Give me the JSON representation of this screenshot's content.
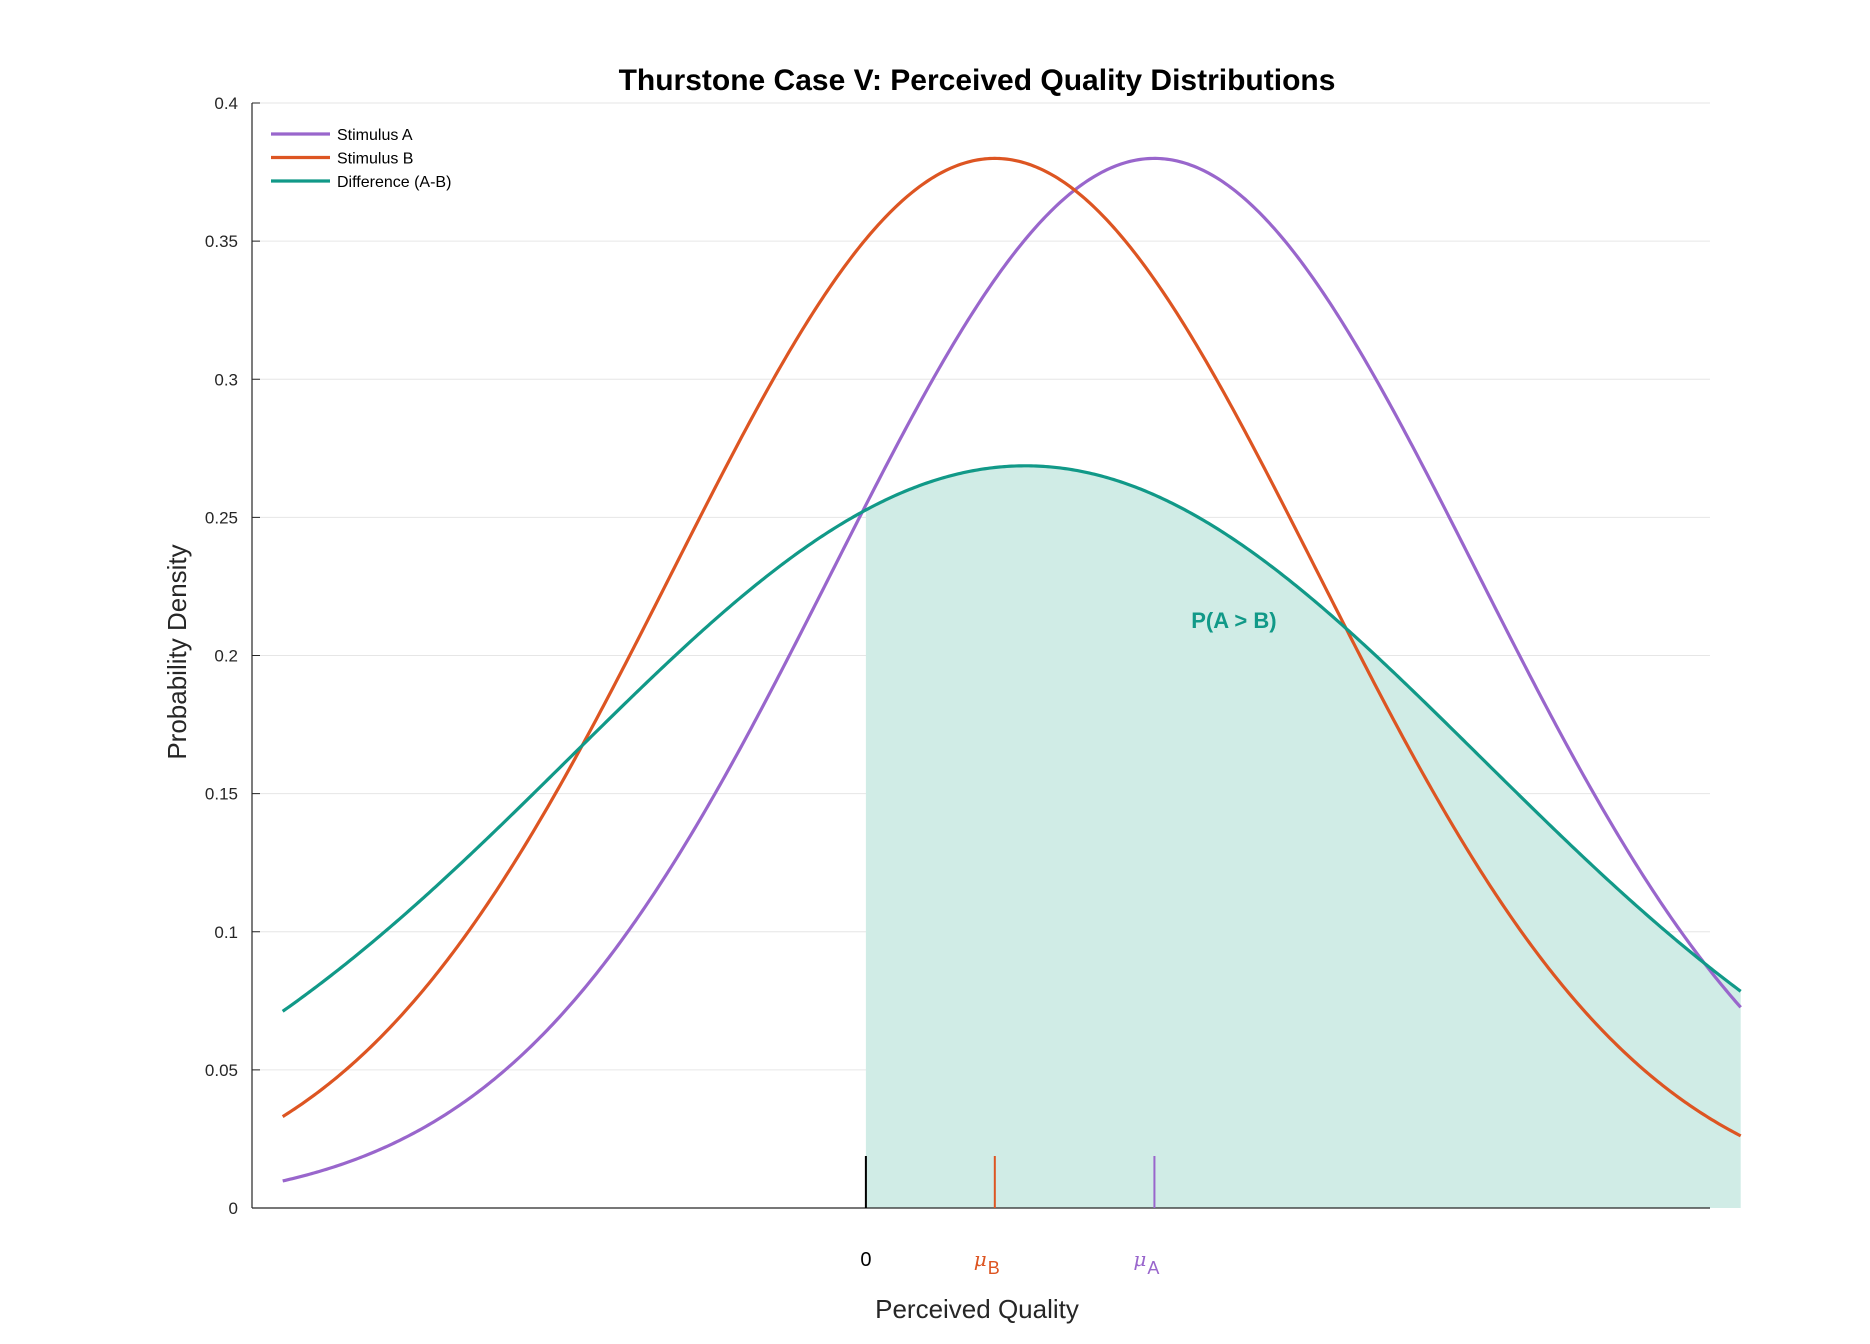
{
  "chart_data": {
    "type": "line",
    "title": "Thurstone Case V: Perceived Quality Distributions",
    "xlabel": "Perceived Quality",
    "ylabel": "Probability Density",
    "xlim": [
      -2.0,
      2.75
    ],
    "ylim": [
      0,
      0.4
    ],
    "yticks": [
      0,
      0.05,
      0.1,
      0.15,
      0.2,
      0.25,
      0.3,
      0.35,
      0.4
    ],
    "ytick_labels": [
      "0",
      "0.05",
      "0.1",
      "0.15",
      "0.2",
      "0.25",
      "0.3",
      "0.35",
      "0.4"
    ],
    "grid": true,
    "legend_position": "top-left",
    "x_range_plotted": [
      -1.9,
      2.85
    ],
    "series": [
      {
        "name": "Stimulus A",
        "color": "#9966cc",
        "mean": 0.94,
        "sd": 1.05
      },
      {
        "name": "Stimulus B",
        "color": "#dd5522",
        "mean": 0.42,
        "sd": 1.05
      },
      {
        "name": "Difference (A-B)",
        "color": "#119988",
        "mean": 0.52,
        "sd": 1.4849
      }
    ],
    "shaded_region": {
      "label": "P(A > B)",
      "from": 0,
      "series": "Difference (A-B)",
      "fill": "#d0ece6"
    },
    "x_markers": [
      {
        "x": 0,
        "label": "0",
        "color": "#000000"
      },
      {
        "x": 0.42,
        "symbol": "μ",
        "subscript": "B",
        "color": "#dd5522"
      },
      {
        "x": 0.94,
        "symbol": "μ",
        "subscript": "A",
        "color": "#9966cc"
      }
    ],
    "annotation": {
      "text": "P(A > B)",
      "x": 1.06,
      "y": 0.21,
      "color": "#119988"
    }
  }
}
